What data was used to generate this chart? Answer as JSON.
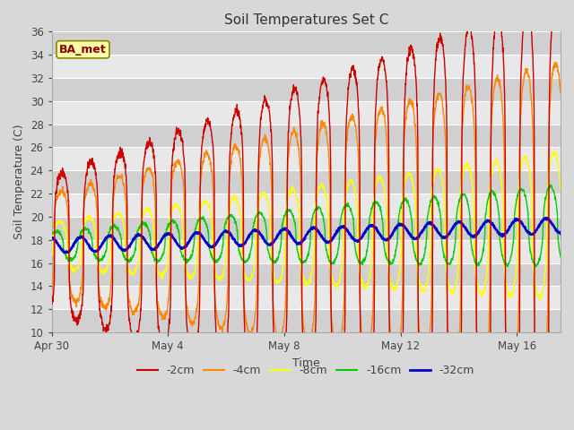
{
  "title": "Soil Temperatures Set C",
  "xlabel": "Time",
  "ylabel": "Soil Temperature (C)",
  "ylim": [
    10,
    36
  ],
  "yticks": [
    10,
    12,
    14,
    16,
    18,
    20,
    22,
    24,
    26,
    28,
    30,
    32,
    34,
    36
  ],
  "colors": {
    "-2cm": "#cc0000",
    "-4cm": "#ff8800",
    "-8cm": "#ffff00",
    "-16cm": "#00cc00",
    "-32cm": "#0000cc"
  },
  "legend_labels": [
    "-2cm",
    "-4cm",
    "-8cm",
    "-16cm",
    "-32cm"
  ],
  "annotation": "BA_met",
  "annotation_color": "#880000",
  "annotation_bg": "#ffffaa",
  "annotation_edge": "#888800",
  "n_days": 17.5,
  "n_points": 2016,
  "xtick_labels": [
    "Apr 30",
    "May 4",
    "May 8",
    "May 12",
    "May 16"
  ],
  "xtick_positions": [
    0,
    4,
    8,
    12,
    16
  ],
  "fig_bg": "#d8d8d8",
  "plot_bg": "#e8e8e8",
  "stripe_bg": "#d0d0d0"
}
